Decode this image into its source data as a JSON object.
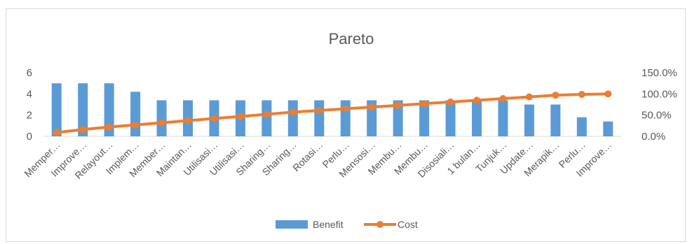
{
  "chart_data": {
    "type": "bar",
    "title": "Pareto",
    "categories": [
      "Memper…",
      "Improve…",
      "Relayout…",
      "Implem…",
      "Member…",
      "Maintan…",
      "Utilisasi…",
      "Utilisasi…",
      "Sharing…",
      "Sharing…",
      "Rotasi…",
      "Perlu…",
      "Mensosi…",
      "Membu…",
      "Membu…",
      "Disosiali…",
      "1 bulan…",
      "Tunjuk…",
      "Update…",
      "Merapik…",
      "Perlu…",
      "Improve…"
    ],
    "series": [
      {
        "name": "Benefit",
        "type": "bar",
        "axis": "left",
        "color": "#5b9bd5",
        "values": [
          5,
          5,
          5,
          4.2,
          3.4,
          3.4,
          3.4,
          3.4,
          3.4,
          3.4,
          3.4,
          3.4,
          3.4,
          3.4,
          3.4,
          3.4,
          3.4,
          3.4,
          3,
          3,
          1.8,
          1.4
        ]
      },
      {
        "name": "Cost",
        "type": "line",
        "axis": "right",
        "color": "#ed7d31",
        "values": [
          0.09,
          0.16,
          0.22,
          0.27,
          0.32,
          0.37,
          0.42,
          0.47,
          0.52,
          0.57,
          0.61,
          0.65,
          0.69,
          0.73,
          0.77,
          0.81,
          0.85,
          0.89,
          0.93,
          0.97,
          0.99,
          1.0
        ]
      }
    ],
    "y_left": {
      "ylim": [
        0,
        6
      ],
      "ticks": [
        "0",
        "2",
        "4",
        "6"
      ]
    },
    "y_right": {
      "ylim": [
        0,
        1.5
      ],
      "ticks": [
        "0.0%",
        "50.0%",
        "100.0%",
        "150.0%"
      ]
    },
    "grid": false,
    "legend": {
      "position": "bottom",
      "entries": [
        "Benefit",
        "Cost"
      ]
    }
  }
}
